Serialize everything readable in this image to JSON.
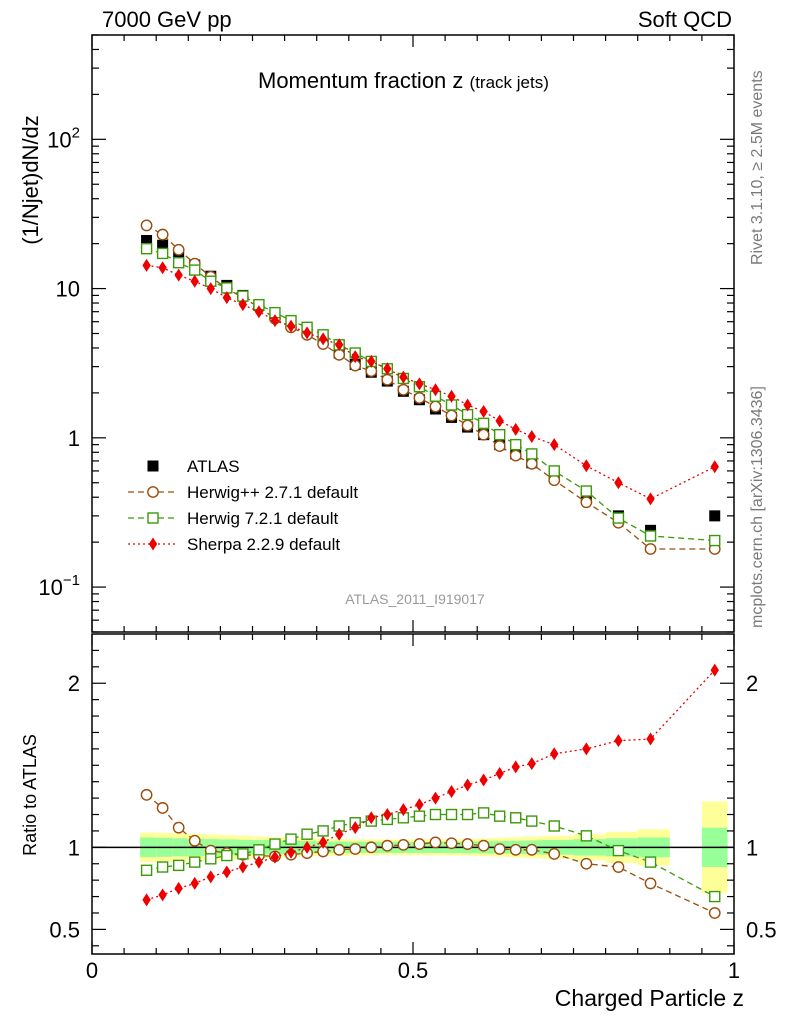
{
  "header": {
    "left": "7000 GeV pp",
    "right": "Soft QCD"
  },
  "side": {
    "version": "Rivet 3.1.10, ≥ 2.5M events",
    "source": "mcplots.cern.ch [arXiv:1306.3436]"
  },
  "chart_data": [
    {
      "type": "scatter",
      "panel": "main",
      "title_main": "Momentum fraction z",
      "title_sub": "(track jets)",
      "ylabel": "(1/Njet)dN/dz",
      "yscale": "log",
      "xlim": [
        0,
        1
      ],
      "ylim": [
        0.05,
        500
      ],
      "ytick_labels": [
        {
          "value": 0.1,
          "base": "10",
          "exp": "−1"
        },
        {
          "value": 1,
          "base": "1",
          "exp": ""
        },
        {
          "value": 10,
          "base": "10",
          "exp": ""
        },
        {
          "value": 100,
          "base": "10",
          "exp": "2"
        }
      ],
      "watermark": "ATLAS_2011_I919017",
      "x": [
        0.085,
        0.11,
        0.135,
        0.16,
        0.185,
        0.21,
        0.235,
        0.26,
        0.285,
        0.31,
        0.335,
        0.36,
        0.385,
        0.41,
        0.435,
        0.46,
        0.485,
        0.51,
        0.535,
        0.56,
        0.585,
        0.61,
        0.635,
        0.66,
        0.685,
        0.72,
        0.77,
        0.82,
        0.87,
        0.97
      ],
      "series": [
        {
          "name": "ATLAS",
          "marker": "square-filled",
          "color": "#000000",
          "values": [
            21,
            19.5,
            16.3,
            14.4,
            12.1,
            10.5,
            9.0,
            7.7,
            6.7,
            5.8,
            5.1,
            4.5,
            3.7,
            3.1,
            2.75,
            2.4,
            2.05,
            1.8,
            1.56,
            1.37,
            1.18,
            1.05,
            0.9,
            0.78,
            0.68,
            0.55,
            0.41,
            0.3,
            0.24,
            0.3
          ]
        },
        {
          "name": "Herwig++ 2.7.1 default",
          "marker": "circle-open",
          "color": "#9a4d0c",
          "values": [
            26.5,
            23.0,
            18.2,
            14.7,
            12.0,
            10.0,
            8.7,
            7.5,
            6.3,
            5.5,
            4.9,
            4.25,
            3.6,
            3.05,
            2.8,
            2.45,
            2.1,
            1.85,
            1.62,
            1.41,
            1.21,
            1.05,
            0.88,
            0.76,
            0.67,
            0.52,
            0.37,
            0.27,
            0.18,
            0.18
          ]
        },
        {
          "name": "Herwig 7.2.1 default",
          "marker": "square-open",
          "color": "#3b9a0a",
          "values": [
            18.5,
            17.2,
            14.9,
            13.3,
            11.2,
            10.1,
            8.9,
            7.8,
            6.9,
            6.1,
            5.5,
            4.9,
            4.2,
            3.7,
            3.25,
            2.9,
            2.5,
            2.2,
            1.9,
            1.66,
            1.43,
            1.25,
            1.05,
            0.9,
            0.78,
            0.6,
            0.44,
            0.29,
            0.22,
            0.205
          ]
        },
        {
          "name": "Sherpa 2.2.9 default",
          "marker": "diamond-filled",
          "color": "#ee0000",
          "values": [
            14.3,
            13.8,
            12.3,
            11.2,
            10.0,
            8.7,
            7.8,
            7.0,
            6.1,
            5.6,
            5.05,
            4.6,
            4.2,
            3.5,
            3.25,
            2.9,
            2.55,
            2.3,
            2.1,
            1.9,
            1.66,
            1.5,
            1.3,
            1.14,
            1.02,
            0.9,
            0.65,
            0.5,
            0.39,
            0.64
          ]
        }
      ],
      "legend": [
        {
          "label": "ATLAS"
        },
        {
          "label": "Herwig++ 2.7.1 default"
        },
        {
          "label": "Herwig 7.2.1 default"
        },
        {
          "label": "Sherpa 2.2.9 default"
        }
      ],
      "legend_position": "bottom-left"
    },
    {
      "type": "scatter",
      "panel": "ratio",
      "ylabel": "Ratio to ATLAS",
      "xlabel": "Charged Particle z",
      "xlim": [
        0,
        1
      ],
      "ylim": [
        0.35,
        2.3
      ],
      "reference_line": 1,
      "ytick_labels": [
        {
          "value": 0.5,
          "label": "0.5"
        },
        {
          "value": 1,
          "label": "1"
        },
        {
          "value": 2,
          "label": "2"
        }
      ],
      "xtick_labels": [
        {
          "value": 0,
          "label": "0"
        },
        {
          "value": 0.5,
          "label": "0.5"
        },
        {
          "value": 1,
          "label": "1"
        }
      ],
      "uncertainty_bands": {
        "x_edges": [
          0.075,
          0.1,
          0.125,
          0.15,
          0.175,
          0.2,
          0.225,
          0.25,
          0.275,
          0.3,
          0.325,
          0.35,
          0.375,
          0.4,
          0.425,
          0.45,
          0.475,
          0.5,
          0.525,
          0.55,
          0.575,
          0.6,
          0.625,
          0.65,
          0.675,
          0.7,
          0.75,
          0.8,
          0.85,
          0.9
        ],
        "gap_after": 0.9,
        "last_bin": [
          0.95,
          0.99
        ],
        "stat_half_widths": [
          0.06,
          0.058,
          0.055,
          0.053,
          0.05,
          0.048,
          0.046,
          0.044,
          0.042,
          0.04,
          0.038,
          0.036,
          0.035,
          0.034,
          0.034,
          0.034,
          0.034,
          0.034,
          0.034,
          0.035,
          0.036,
          0.037,
          0.038,
          0.04,
          0.042,
          0.045,
          0.05,
          0.055,
          0.06
        ],
        "total_half_widths": [
          0.09,
          0.088,
          0.085,
          0.082,
          0.078,
          0.074,
          0.07,
          0.066,
          0.062,
          0.058,
          0.055,
          0.052,
          0.05,
          0.049,
          0.048,
          0.048,
          0.048,
          0.048,
          0.049,
          0.05,
          0.052,
          0.055,
          0.058,
          0.062,
          0.066,
          0.07,
          0.08,
          0.095,
          0.11
        ],
        "last_stat_half_width": 0.12,
        "last_total_half_width": 0.28,
        "stat_color": "#99ff99",
        "total_color": "#ffff99"
      },
      "x": [
        0.085,
        0.11,
        0.135,
        0.16,
        0.185,
        0.21,
        0.235,
        0.26,
        0.285,
        0.31,
        0.335,
        0.36,
        0.385,
        0.41,
        0.435,
        0.46,
        0.485,
        0.51,
        0.535,
        0.56,
        0.585,
        0.61,
        0.635,
        0.66,
        0.685,
        0.72,
        0.77,
        0.82,
        0.87,
        0.97
      ],
      "series": [
        {
          "name": "Herwig++ 2.7.1 default",
          "marker": "circle-open",
          "color": "#9a4d0c",
          "values": [
            1.32,
            1.24,
            1.12,
            1.04,
            0.98,
            0.965,
            0.955,
            0.95,
            0.945,
            0.955,
            0.965,
            0.975,
            0.985,
            0.99,
            1.0,
            1.01,
            1.015,
            1.02,
            1.03,
            1.025,
            1.02,
            1.01,
            0.99,
            0.985,
            0.985,
            0.96,
            0.9,
            0.88,
            0.78,
            0.6
          ]
        },
        {
          "name": "Herwig 7.2.1 default",
          "marker": "square-open",
          "color": "#3b9a0a",
          "values": [
            0.86,
            0.88,
            0.89,
            0.91,
            0.93,
            0.95,
            0.96,
            0.985,
            1.02,
            1.05,
            1.08,
            1.1,
            1.13,
            1.15,
            1.16,
            1.17,
            1.18,
            1.19,
            1.2,
            1.2,
            1.2,
            1.21,
            1.19,
            1.18,
            1.16,
            1.13,
            1.07,
            0.98,
            0.91,
            0.7
          ]
        },
        {
          "name": "Sherpa 2.2.9 default",
          "marker": "diamond-filled",
          "color": "#ee0000",
          "values": [
            0.68,
            0.71,
            0.75,
            0.78,
            0.82,
            0.85,
            0.88,
            0.91,
            0.94,
            0.97,
            1.0,
            1.03,
            1.08,
            1.12,
            1.18,
            1.2,
            1.23,
            1.26,
            1.3,
            1.34,
            1.38,
            1.41,
            1.45,
            1.49,
            1.51,
            1.57,
            1.6,
            1.65,
            1.66,
            2.08
          ]
        }
      ]
    }
  ]
}
